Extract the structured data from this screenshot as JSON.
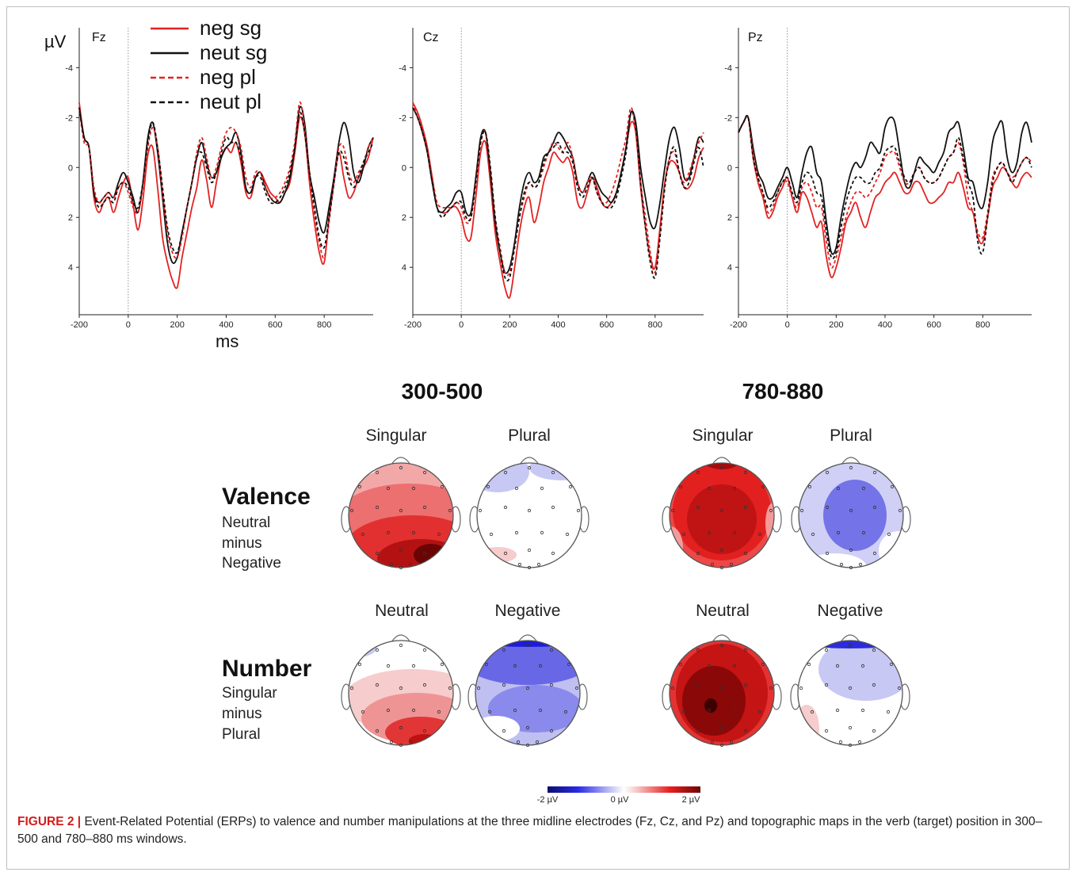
{
  "erp": {
    "y_unit": "µV",
    "x_unit": "ms",
    "x_ticks": [
      "-200",
      "0",
      "200",
      "400",
      "600",
      "800"
    ],
    "y_ticks": [
      "-4",
      "-2",
      "0",
      "2",
      "4"
    ],
    "panels": [
      "Fz",
      "Cz",
      "Pz"
    ],
    "legend": [
      {
        "label": "neg sg",
        "color": "#e32222",
        "dashed": false
      },
      {
        "label": "neut sg",
        "color": "#111111",
        "dashed": false
      },
      {
        "label": "neg pl",
        "color": "#e32222",
        "dashed": true
      },
      {
        "label": "neut pl",
        "color": "#111111",
        "dashed": true
      }
    ]
  },
  "chart_data": {
    "type": "line",
    "x": [
      -200,
      -180,
      -160,
      -140,
      -120,
      -100,
      -80,
      -60,
      -40,
      -20,
      0,
      20,
      40,
      60,
      80,
      100,
      120,
      140,
      160,
      180,
      200,
      220,
      240,
      260,
      280,
      300,
      320,
      340,
      360,
      380,
      400,
      420,
      440,
      460,
      480,
      500,
      520,
      540,
      560,
      580,
      600,
      620,
      640,
      660,
      680,
      700,
      720,
      740,
      760,
      780,
      800,
      820,
      840,
      860,
      880,
      900,
      920,
      940,
      960,
      980,
      1000
    ],
    "xlim": [
      -200,
      1000
    ],
    "ylim": [
      5.9,
      -5.6
    ],
    "y_inverted": true,
    "xlabel": "ms",
    "ylabel": "µV",
    "panels": [
      {
        "electrode": "Fz",
        "series": [
          {
            "name": "neg sg",
            "values": [
              -2.6,
              -1.2,
              -0.8,
              1.2,
              1.8,
              1.4,
              1.2,
              1.8,
              1.2,
              0.6,
              0.4,
              1.5,
              2.5,
              1.3,
              -0.5,
              -0.8,
              0.8,
              2.8,
              3.8,
              4.5,
              4.8,
              3.6,
              2.6,
              1.6,
              0.8,
              -0.3,
              0.5,
              1.6,
              0.6,
              -0.4,
              -0.8,
              -0.6,
              -1.0,
              -0.2,
              1.0,
              1.2,
              0.4,
              0.2,
              0.6,
              1.0,
              1.2,
              1.4,
              1.0,
              0.6,
              -0.6,
              -2.0,
              -1.4,
              0.6,
              2.2,
              3.4,
              3.8,
              2.0,
              0.6,
              -0.6,
              0.4,
              1.2,
              1.0,
              0.4,
              0.0,
              -0.4,
              -1.2
            ]
          },
          {
            "name": "neut sg",
            "values": [
              -2.4,
              -1.2,
              -0.8,
              1.0,
              1.4,
              1.2,
              1.0,
              1.2,
              0.6,
              0.2,
              0.6,
              1.2,
              1.8,
              0.6,
              -1.2,
              -1.8,
              -0.6,
              1.2,
              3.0,
              3.8,
              3.6,
              2.6,
              1.6,
              0.6,
              -0.4,
              -1.0,
              -0.2,
              0.4,
              0.2,
              -0.4,
              -0.8,
              -1.0,
              -1.4,
              -0.6,
              0.8,
              1.0,
              0.4,
              0.2,
              0.8,
              1.2,
              1.4,
              1.4,
              1.0,
              0.4,
              -0.8,
              -2.4,
              -1.8,
              0.2,
              1.2,
              2.2,
              2.6,
              1.6,
              0.4,
              -1.0,
              -1.8,
              -1.2,
              0.2,
              0.6,
              0.0,
              -0.8,
              -1.2
            ]
          },
          {
            "name": "neg pl",
            "values": [
              -2.4,
              -1.0,
              -0.8,
              0.8,
              1.4,
              1.2,
              1.0,
              1.2,
              0.8,
              0.6,
              1.0,
              1.6,
              1.8,
              0.8,
              -0.8,
              -1.6,
              -0.8,
              1.0,
              2.6,
              3.4,
              3.6,
              2.8,
              1.6,
              0.6,
              -0.6,
              -1.2,
              -0.4,
              0.4,
              0.0,
              -0.8,
              -1.4,
              -1.6,
              -1.4,
              -0.8,
              0.4,
              0.8,
              0.2,
              0.2,
              0.8,
              1.2,
              1.2,
              1.0,
              0.6,
              0.0,
              -1.0,
              -2.6,
              -1.6,
              0.2,
              1.8,
              3.0,
              3.6,
              2.2,
              0.6,
              -0.8,
              -0.8,
              0.2,
              0.6,
              0.2,
              -0.2,
              -0.8,
              -1.2
            ]
          },
          {
            "name": "neut pl",
            "values": [
              -2.4,
              -1.2,
              -0.8,
              1.0,
              1.6,
              1.4,
              1.2,
              1.4,
              0.8,
              0.6,
              0.8,
              1.4,
              1.6,
              0.6,
              -1.0,
              -1.8,
              -0.8,
              0.8,
              2.4,
              3.2,
              3.4,
              2.6,
              1.6,
              0.6,
              -0.4,
              -0.6,
              0.0,
              0.6,
              0.2,
              -0.6,
              -1.2,
              -1.0,
              -1.0,
              -0.4,
              0.8,
              1.0,
              0.4,
              0.4,
              1.0,
              1.4,
              1.4,
              1.2,
              0.8,
              0.2,
              -0.8,
              -2.2,
              -1.4,
              0.2,
              1.6,
              2.8,
              3.2,
              2.0,
              0.6,
              -0.6,
              -0.4,
              0.4,
              0.8,
              0.4,
              -0.2,
              -0.6,
              -1.0
            ]
          }
        ]
      },
      {
        "electrode": "Cz",
        "series": [
          {
            "name": "neg sg",
            "values": [
              -2.6,
              -2.2,
              -1.6,
              -0.8,
              0.4,
              1.6,
              1.8,
              1.8,
              1.6,
              1.6,
              2.0,
              2.8,
              2.8,
              1.2,
              -0.6,
              -1.0,
              0.6,
              2.6,
              3.8,
              4.8,
              5.2,
              4.0,
              2.6,
              1.6,
              1.2,
              2.2,
              1.6,
              0.6,
              0.0,
              -0.6,
              -0.4,
              -0.2,
              -0.4,
              0.2,
              1.4,
              1.6,
              1.0,
              0.4,
              0.8,
              1.4,
              1.6,
              1.4,
              1.0,
              0.2,
              -0.8,
              -1.8,
              -1.4,
              0.8,
              2.4,
              3.6,
              4.0,
              2.4,
              0.6,
              -0.2,
              -0.2,
              0.2,
              0.8,
              0.8,
              0.4,
              -0.4,
              -0.8
            ]
          },
          {
            "name": "neut sg",
            "values": [
              -2.4,
              -2.0,
              -1.4,
              -0.6,
              0.6,
              1.6,
              1.8,
              1.6,
              1.4,
              1.0,
              1.0,
              1.8,
              1.8,
              0.4,
              -1.2,
              -1.4,
              0.2,
              2.2,
              3.4,
              4.2,
              4.0,
              3.0,
              1.6,
              0.6,
              0.2,
              0.6,
              0.4,
              -0.4,
              -0.6,
              -1.0,
              -1.4,
              -1.2,
              -0.8,
              -0.4,
              0.6,
              1.0,
              0.6,
              0.2,
              0.6,
              1.0,
              1.2,
              1.4,
              1.0,
              0.2,
              -0.8,
              -2.2,
              -1.8,
              0.0,
              1.2,
              2.2,
              2.4,
              1.4,
              0.0,
              -1.2,
              -1.6,
              -0.8,
              0.4,
              0.4,
              -0.4,
              -1.2,
              -1.0
            ]
          },
          {
            "name": "neg pl",
            "values": [
              -2.6,
              -2.0,
              -1.4,
              -0.6,
              0.4,
              1.4,
              1.6,
              1.6,
              1.6,
              1.4,
              1.6,
              2.2,
              2.0,
              0.6,
              -1.0,
              -1.4,
              0.0,
              2.0,
              3.2,
              4.2,
              4.2,
              3.2,
              2.0,
              1.2,
              0.6,
              0.8,
              0.6,
              0.0,
              -0.6,
              -1.0,
              -0.8,
              -0.6,
              -1.0,
              -0.4,
              0.6,
              1.0,
              0.6,
              0.4,
              1.0,
              1.4,
              1.4,
              1.0,
              0.4,
              -0.4,
              -1.2,
              -2.4,
              -1.4,
              0.6,
              2.0,
              3.4,
              4.2,
              2.6,
              0.6,
              -0.4,
              -0.6,
              0.2,
              0.6,
              0.2,
              -0.4,
              -1.0,
              -1.4
            ]
          },
          {
            "name": "neut pl",
            "values": [
              -2.4,
              -2.0,
              -1.4,
              -0.6,
              0.6,
              1.6,
              2.0,
              1.8,
              1.6,
              1.4,
              1.4,
              2.0,
              2.0,
              0.6,
              -1.0,
              -1.4,
              0.0,
              2.0,
              3.4,
              4.4,
              4.4,
              3.2,
              2.0,
              1.0,
              0.6,
              0.8,
              0.6,
              -0.2,
              -0.6,
              -0.8,
              -1.0,
              -0.6,
              -0.6,
              -0.2,
              0.8,
              1.2,
              0.8,
              0.4,
              1.0,
              1.4,
              1.6,
              1.6,
              1.2,
              0.4,
              -0.6,
              -2.2,
              -1.6,
              0.6,
              2.4,
              3.8,
              4.4,
              2.8,
              0.8,
              -0.4,
              -0.8,
              0.2,
              0.8,
              0.6,
              -0.2,
              -0.8,
              0.0
            ]
          }
        ]
      },
      {
        "electrode": "Pz",
        "series": [
          {
            "name": "neg sg",
            "values": [
              -1.4,
              -1.8,
              -2.0,
              -0.4,
              0.6,
              1.2,
              2.0,
              1.8,
              1.2,
              0.8,
              0.4,
              1.2,
              1.8,
              1.0,
              1.2,
              1.8,
              2.4,
              2.2,
              3.6,
              4.4,
              4.0,
              3.2,
              2.2,
              1.8,
              1.4,
              2.0,
              2.4,
              1.8,
              1.2,
              1.0,
              0.6,
              0.4,
              0.2,
              0.6,
              1.0,
              1.0,
              0.6,
              0.6,
              1.0,
              1.4,
              1.4,
              1.2,
              1.0,
              0.6,
              0.6,
              0.2,
              0.8,
              1.6,
              1.8,
              2.8,
              3.0,
              2.0,
              0.8,
              0.4,
              0.0,
              0.2,
              0.6,
              0.8,
              0.4,
              0.2,
              0.4
            ]
          },
          {
            "name": "neut sg",
            "values": [
              -1.4,
              -1.8,
              -2.0,
              -0.8,
              0.2,
              0.6,
              1.2,
              1.2,
              0.8,
              0.4,
              0.0,
              0.6,
              1.2,
              0.2,
              -0.6,
              -0.8,
              0.2,
              0.6,
              2.2,
              3.4,
              3.2,
              2.0,
              1.0,
              0.2,
              -0.2,
              0.0,
              -0.4,
              -1.0,
              -0.8,
              -0.6,
              -1.6,
              -2.0,
              -1.8,
              -0.6,
              0.6,
              0.8,
              0.2,
              -0.4,
              -0.2,
              0.0,
              0.2,
              -0.2,
              -0.6,
              -1.4,
              -1.6,
              -1.8,
              -0.8,
              0.4,
              0.6,
              1.4,
              1.6,
              0.6,
              -1.0,
              -1.6,
              -1.8,
              -0.4,
              0.2,
              -0.2,
              -1.4,
              -1.8,
              -1.0
            ]
          },
          {
            "name": "neg pl",
            "values": [
              -1.4,
              -1.8,
              -2.0,
              -0.6,
              0.4,
              1.0,
              1.8,
              1.6,
              1.0,
              0.6,
              0.6,
              1.2,
              1.6,
              0.8,
              0.6,
              1.0,
              1.6,
              1.6,
              3.0,
              4.0,
              3.6,
              2.8,
              2.0,
              1.4,
              1.0,
              1.0,
              1.2,
              1.0,
              0.6,
              0.2,
              -0.4,
              -0.6,
              -0.6,
              0.0,
              0.6,
              0.6,
              0.2,
              0.0,
              0.4,
              0.6,
              0.6,
              0.4,
              0.0,
              -0.4,
              -0.6,
              -1.0,
              -0.2,
              1.2,
              1.8,
              2.6,
              2.8,
              1.8,
              0.4,
              0.0,
              -0.2,
              0.2,
              0.4,
              0.2,
              -0.2,
              -0.4,
              -0.2
            ]
          },
          {
            "name": "neut pl",
            "values": [
              -1.4,
              -1.8,
              -2.0,
              -0.4,
              0.4,
              1.0,
              1.6,
              1.4,
              1.0,
              0.6,
              0.4,
              1.0,
              1.4,
              0.6,
              0.2,
              0.4,
              1.0,
              1.2,
              2.6,
              3.6,
              3.4,
              2.4,
              1.4,
              0.8,
              0.4,
              0.4,
              0.6,
              0.6,
              0.2,
              0.0,
              -0.6,
              -0.8,
              -0.8,
              -0.2,
              0.4,
              0.6,
              0.2,
              0.0,
              0.4,
              0.6,
              0.6,
              0.4,
              0.0,
              -0.4,
              -0.6,
              -1.2,
              -0.4,
              0.6,
              1.2,
              3.0,
              3.4,
              2.0,
              0.6,
              0.0,
              -0.2,
              0.2,
              0.6,
              0.2,
              -0.2,
              -0.4,
              0.0
            ]
          }
        ]
      }
    ]
  },
  "topo": {
    "windows": [
      "300-500",
      "780-880"
    ],
    "rows": [
      {
        "title": "Valence",
        "sub": [
          "Neutral",
          "minus",
          "Negative"
        ],
        "conds": [
          "Singular",
          "Plural"
        ]
      },
      {
        "title": "Number",
        "sub": [
          "Singular",
          "minus",
          "Plural"
        ],
        "conds": [
          "Neutral",
          "Negative"
        ]
      }
    ],
    "colorbar": {
      "min_label": "-2 µV",
      "mid_label": "0 µV",
      "max_label": "2 µV"
    }
  },
  "caption": {
    "label": "FIGURE 2 |",
    "text": " Event-Related Potential (ERPs) to valence and number manipulations at the three midline electrodes (Fz, Cz, and Pz) and topographic maps in the verb (target) position in 300–500 and 780–880 ms windows."
  },
  "colors": {
    "red": "#e32222",
    "black": "#111111",
    "caption_red": "#d31b1b"
  }
}
